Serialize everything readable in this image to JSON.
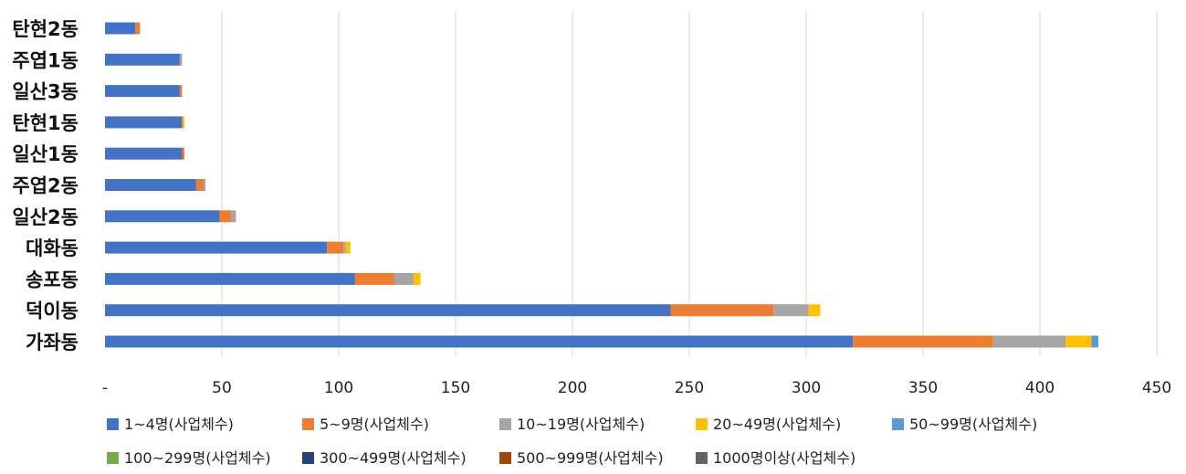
{
  "chart_data": {
    "type": "bar",
    "orientation": "horizontal",
    "stacked": true,
    "title": "",
    "xlabel": "",
    "ylabel": "",
    "xlim": [
      0,
      450
    ],
    "x_ticks": [
      {
        "value": 0,
        "label": "-"
      },
      {
        "value": 50,
        "label": "50"
      },
      {
        "value": 100,
        "label": "100"
      },
      {
        "value": 150,
        "label": "150"
      },
      {
        "value": 200,
        "label": "200"
      },
      {
        "value": 250,
        "label": "250"
      },
      {
        "value": 300,
        "label": "300"
      },
      {
        "value": 350,
        "label": "350"
      },
      {
        "value": 400,
        "label": "400"
      },
      {
        "value": 450,
        "label": "450"
      }
    ],
    "grid": "vertical",
    "legend_position": "bottom",
    "categories": [
      "탄현2동",
      "주엽1동",
      "일산3동",
      "탄현1동",
      "일산1동",
      "주엽2동",
      "일산2동",
      "대화동",
      "송포동",
      "덕이동",
      "가좌동"
    ],
    "series": [
      {
        "name": "1~4명(사업체수)",
        "color": "#4472C4",
        "values": [
          13,
          32,
          32,
          33,
          33,
          39,
          49,
          95,
          107,
          242,
          320
        ]
      },
      {
        "name": "5~9명(사업체수)",
        "color": "#ED7D31",
        "values": [
          2,
          0,
          1,
          0,
          1,
          3,
          5,
          7,
          17,
          44,
          60
        ]
      },
      {
        "name": "10~19명(사업체수)",
        "color": "#A5A5A5",
        "values": [
          0,
          1,
          0,
          0,
          0,
          1,
          2,
          1,
          8,
          15,
          31
        ]
      },
      {
        "name": "20~49명(사업체수)",
        "color": "#FFC000",
        "values": [
          0,
          0,
          0,
          1,
          0,
          0,
          0,
          2,
          3,
          5,
          11
        ]
      },
      {
        "name": "50~99명(사업체수)",
        "color": "#5B9BD5",
        "values": [
          0,
          0,
          0,
          0,
          0,
          0,
          0,
          0,
          0,
          0,
          3
        ]
      },
      {
        "name": "100~299명(사업체수)",
        "color": "#70AD47",
        "values": [
          0,
          0,
          0,
          0,
          0,
          0,
          0,
          0,
          0,
          0,
          0
        ]
      },
      {
        "name": "300~499명(사업체수)",
        "color": "#264478",
        "values": [
          0,
          0,
          0,
          0,
          0,
          0,
          0,
          0,
          0,
          0,
          0
        ]
      },
      {
        "name": "500~999명(사업체수)",
        "color": "#9E480E",
        "values": [
          0,
          0,
          0,
          0,
          0,
          0,
          0,
          0,
          0,
          0,
          0
        ]
      },
      {
        "name": "1000명이상(사업체수)",
        "color": "#636363",
        "values": [
          0,
          0,
          0,
          0,
          0,
          0,
          0,
          0,
          0,
          0,
          0
        ]
      }
    ]
  }
}
